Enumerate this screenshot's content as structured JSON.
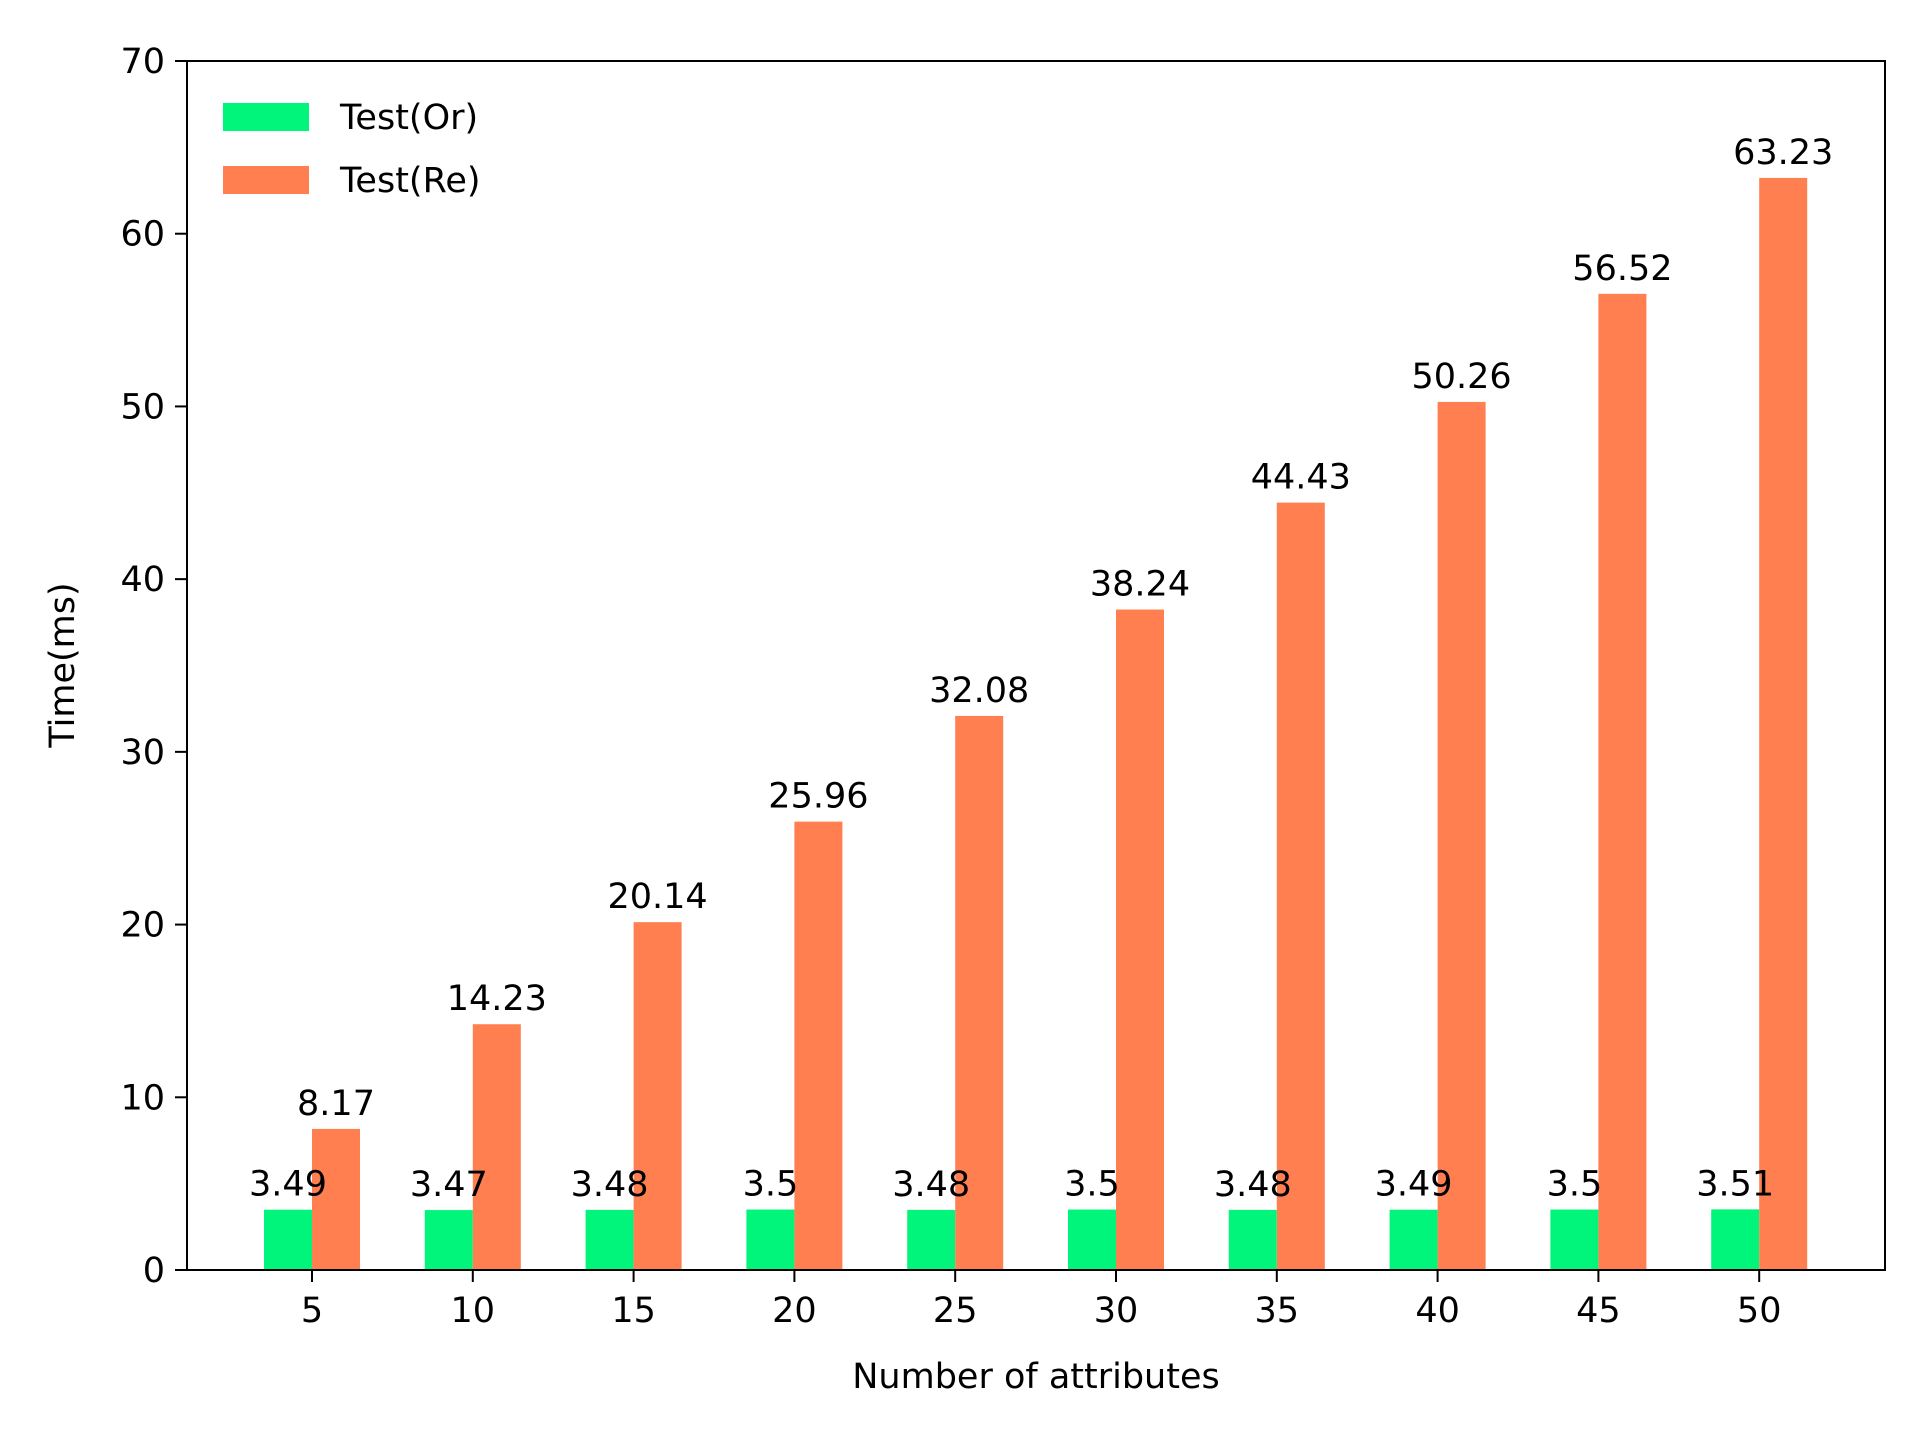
{
  "chart_data": {
    "type": "bar",
    "title": "",
    "xlabel": "Number of attributes",
    "ylabel": "Time(ms)",
    "categories": [
      "5",
      "10",
      "15",
      "20",
      "25",
      "30",
      "35",
      "40",
      "45",
      "50"
    ],
    "ylim": [
      0,
      70
    ],
    "yticks": [
      "0",
      "10",
      "20",
      "30",
      "40",
      "50",
      "60",
      "70"
    ],
    "grid": false,
    "legend_position": "top-left",
    "series": [
      {
        "name": "Test(Or)",
        "color": "#00F57A",
        "values": [
          3.49,
          3.47,
          3.48,
          3.5,
          3.48,
          3.5,
          3.48,
          3.49,
          3.5,
          3.51
        ],
        "labels": [
          "3.49",
          "3.47",
          "3.48",
          "3.5",
          "3.48",
          "3.5",
          "3.48",
          "3.49",
          "3.5",
          "3.51"
        ]
      },
      {
        "name": "Test(Re)",
        "color": "#FF7F50",
        "values": [
          8.17,
          14.23,
          20.14,
          25.96,
          32.08,
          38.24,
          44.43,
          50.26,
          56.52,
          63.23
        ],
        "labels": [
          "8.17",
          "14.23",
          "20.14",
          "25.96",
          "32.08",
          "38.24",
          "44.43",
          "50.26",
          "56.52",
          "63.23"
        ]
      }
    ]
  }
}
